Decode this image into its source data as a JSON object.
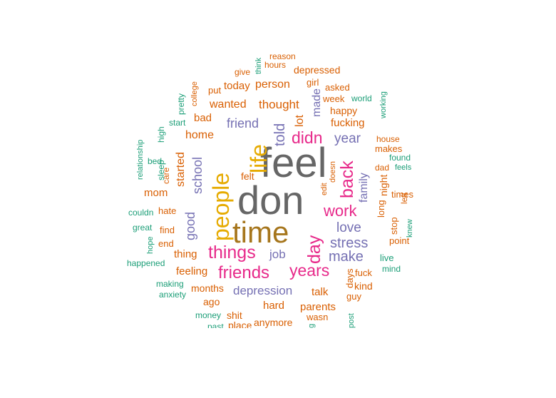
{
  "palette": {
    "gray": "#666666",
    "olive": "#a6761d",
    "gold": "#e6ab02",
    "pink": "#e7298a",
    "purple": "#7570b3",
    "orange": "#d95f02",
    "teal": "#1b9e77"
  },
  "words": [
    {
      "text": "feel",
      "color": "gray"
    },
    {
      "text": "don",
      "color": "gray"
    },
    {
      "text": "time",
      "color": "olive"
    },
    {
      "text": "people",
      "color": "gold"
    },
    {
      "text": "life",
      "color": "gold"
    },
    {
      "text": "things",
      "color": "pink"
    },
    {
      "text": "friends",
      "color": "pink"
    },
    {
      "text": "years",
      "color": "pink"
    },
    {
      "text": "day",
      "color": "pink"
    },
    {
      "text": "didn",
      "color": "pink"
    },
    {
      "text": "back",
      "color": "pink"
    },
    {
      "text": "work",
      "color": "pink"
    },
    {
      "text": "told",
      "color": "purple"
    },
    {
      "text": "stress",
      "color": "purple"
    },
    {
      "text": "make",
      "color": "purple"
    },
    {
      "text": "love",
      "color": "purple"
    },
    {
      "text": "year",
      "color": "purple"
    },
    {
      "text": "friend",
      "color": "purple"
    },
    {
      "text": "school",
      "color": "purple"
    },
    {
      "text": "good",
      "color": "purple"
    },
    {
      "text": "depression",
      "color": "purple"
    },
    {
      "text": "job",
      "color": "purple"
    },
    {
      "text": "family",
      "color": "purple"
    },
    {
      "text": "made",
      "color": "purple"
    },
    {
      "text": "lot",
      "color": "orange"
    },
    {
      "text": "thought",
      "color": "orange"
    },
    {
      "text": "wanted",
      "color": "orange"
    },
    {
      "text": "person",
      "color": "orange"
    },
    {
      "text": "today",
      "color": "orange"
    },
    {
      "text": "home",
      "color": "orange"
    },
    {
      "text": "bad",
      "color": "orange"
    },
    {
      "text": "started",
      "color": "orange"
    },
    {
      "text": "felt",
      "color": "orange"
    },
    {
      "text": "mom",
      "color": "orange"
    },
    {
      "text": "thing",
      "color": "orange"
    },
    {
      "text": "feeling",
      "color": "orange"
    },
    {
      "text": "months",
      "color": "orange"
    },
    {
      "text": "talk",
      "color": "orange"
    },
    {
      "text": "hard",
      "color": "orange"
    },
    {
      "text": "parents",
      "color": "orange"
    },
    {
      "text": "happy",
      "color": "orange"
    },
    {
      "text": "fucking",
      "color": "orange"
    },
    {
      "text": "night",
      "color": "orange"
    },
    {
      "text": "long",
      "color": "orange"
    },
    {
      "text": "stop",
      "color": "orange"
    },
    {
      "text": "point",
      "color": "orange"
    },
    {
      "text": "days",
      "color": "orange"
    },
    {
      "text": "fuck",
      "color": "orange"
    },
    {
      "text": "kind",
      "color": "orange"
    },
    {
      "text": "guy",
      "color": "orange"
    },
    {
      "text": "anymore",
      "color": "orange"
    },
    {
      "text": "ago",
      "color": "orange"
    },
    {
      "text": "shit",
      "color": "orange"
    },
    {
      "text": "place",
      "color": "orange"
    },
    {
      "text": "wasn",
      "color": "orange"
    },
    {
      "text": "depressed",
      "color": "orange"
    },
    {
      "text": "asked",
      "color": "orange"
    },
    {
      "text": "week",
      "color": "orange"
    },
    {
      "text": "girl",
      "color": "orange"
    },
    {
      "text": "put",
      "color": "orange"
    },
    {
      "text": "give",
      "color": "orange"
    },
    {
      "text": "hours",
      "color": "orange"
    },
    {
      "text": "reason",
      "color": "orange"
    },
    {
      "text": "college",
      "color": "orange"
    },
    {
      "text": "care",
      "color": "orange"
    },
    {
      "text": "hate",
      "color": "orange"
    },
    {
      "text": "find",
      "color": "orange"
    },
    {
      "text": "end",
      "color": "orange"
    },
    {
      "text": "house",
      "color": "orange"
    },
    {
      "text": "makes",
      "color": "orange"
    },
    {
      "text": "dad",
      "color": "orange"
    },
    {
      "text": "times",
      "color": "orange"
    },
    {
      "text": "left",
      "color": "orange"
    },
    {
      "text": "doesn",
      "color": "orange"
    },
    {
      "text": "edit",
      "color": "orange"
    },
    {
      "text": "live",
      "color": "teal"
    },
    {
      "text": "mind",
      "color": "teal"
    },
    {
      "text": "knew",
      "color": "teal"
    },
    {
      "text": "found",
      "color": "teal"
    },
    {
      "text": "feels",
      "color": "teal"
    },
    {
      "text": "world",
      "color": "teal"
    },
    {
      "text": "working",
      "color": "teal"
    },
    {
      "text": "think",
      "color": "teal"
    },
    {
      "text": "pretty",
      "color": "teal"
    },
    {
      "text": "start",
      "color": "teal"
    },
    {
      "text": "high",
      "color": "teal"
    },
    {
      "text": "bed",
      "color": "teal"
    },
    {
      "text": "sleep",
      "color": "teal"
    },
    {
      "text": "relationship",
      "color": "teal"
    },
    {
      "text": "couldn",
      "color": "teal"
    },
    {
      "text": "great",
      "color": "teal"
    },
    {
      "text": "hope",
      "color": "teal"
    },
    {
      "text": "happened",
      "color": "teal"
    },
    {
      "text": "making",
      "color": "teal"
    },
    {
      "text": "anxiety",
      "color": "teal"
    },
    {
      "text": "money",
      "color": "teal"
    },
    {
      "text": "past",
      "color": "teal"
    },
    {
      "text": "post",
      "color": "teal"
    },
    {
      "text": "g",
      "color": "teal"
    }
  ]
}
